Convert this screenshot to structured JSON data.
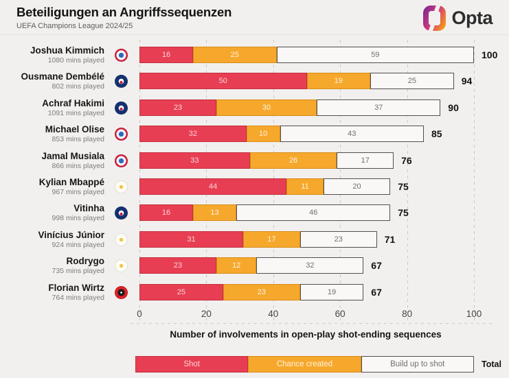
{
  "header": {
    "title": "Beteiligungen an Angriffssequenzen",
    "subtitle": "UEFA Champions League 2024/25",
    "brand": "Opta"
  },
  "colors": {
    "shot": "#e83e53",
    "shot-border": "#c2303f",
    "chance": "#f6a82c",
    "chance-border": "#d78d1a",
    "build": "#f9f8f6",
    "build-border": "#4f4f4f",
    "background": "#f2f0ee"
  },
  "chart_data": {
    "type": "bar",
    "orientation": "horizontal",
    "stacked": true,
    "title": "Beteiligungen an Angriffssequenzen",
    "subtitle": "UEFA Champions League 2024/25",
    "xlabel": "Number of involvements in open-play shot-ending sequences",
    "xlim": [
      0,
      100
    ],
    "grid": "vertical-dashed",
    "series_names": [
      "Shot",
      "Chance created",
      "Build up to shot"
    ],
    "players": [
      {
        "name": "Joshua Kimmich",
        "minutes": "1080 mins played",
        "club": "bayern",
        "values": [
          16,
          25,
          59
        ],
        "total": 100
      },
      {
        "name": "Ousmane Dembélé",
        "minutes": "802 mins played",
        "club": "psg",
        "values": [
          50,
          19,
          25
        ],
        "total": 94
      },
      {
        "name": "Achraf Hakimi",
        "minutes": "1091 mins played",
        "club": "psg",
        "values": [
          23,
          30,
          37
        ],
        "total": 90
      },
      {
        "name": "Michael Olise",
        "minutes": "853 mins played",
        "club": "bayern",
        "values": [
          32,
          10,
          43
        ],
        "total": 85
      },
      {
        "name": "Jamal Musiala",
        "minutes": "866 mins played",
        "club": "bayern",
        "values": [
          33,
          26,
          17
        ],
        "total": 76
      },
      {
        "name": "Kylian Mbappé",
        "minutes": "967 mins played",
        "club": "real",
        "values": [
          44,
          11,
          20
        ],
        "total": 75
      },
      {
        "name": "Vitinha",
        "minutes": "998 mins played",
        "club": "psg",
        "values": [
          16,
          13,
          46
        ],
        "total": 75
      },
      {
        "name": "Vinícius Júnior",
        "minutes": "924 mins played",
        "club": "real",
        "values": [
          31,
          17,
          23
        ],
        "total": 71
      },
      {
        "name": "Rodrygo",
        "minutes": "735 mins played",
        "club": "real",
        "values": [
          23,
          12,
          32
        ],
        "total": 67
      },
      {
        "name": "Florian Wirtz",
        "minutes": "764 mins played",
        "club": "leverkusen",
        "values": [
          25,
          23,
          19
        ],
        "total": 67
      }
    ]
  },
  "axis": {
    "ticks": [
      0,
      20,
      40,
      60,
      80,
      100
    ],
    "label": "Number of involvements in open-play shot-ending sequences"
  },
  "legend": {
    "items": [
      {
        "label": "Shot",
        "key": "shot"
      },
      {
        "label": "Chance created",
        "key": "chance"
      },
      {
        "label": "Build up to shot",
        "key": "build"
      }
    ],
    "total_label": "Total"
  }
}
